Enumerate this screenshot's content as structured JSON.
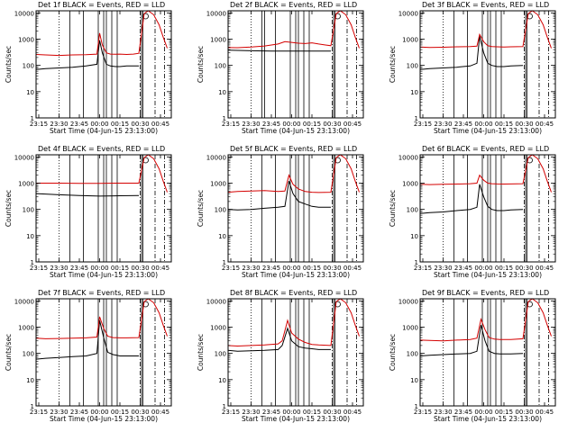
{
  "figure": {
    "ylabel": "Counts/sec",
    "xlabel": "Start Time (04-Jun-15 23:13:00)",
    "x_ticks": [
      "23:15",
      "23:30",
      "23:45",
      "00:00",
      "00:15",
      "00:30",
      "00:45"
    ],
    "y_ticks": [
      "1",
      "10",
      "100",
      "1000",
      "10000"
    ]
  },
  "colors": {
    "events": "#000000",
    "lld": "#d40000",
    "axes": "#000000"
  },
  "chart_data": [
    {
      "type": "line",
      "title": "Det 1f BLACK = Events, RED = LLD",
      "xlabel": "Start Time (04-Jun-15 23:13:00)",
      "ylabel": "Counts/sec",
      "y_scale": "log",
      "ylim": [
        1,
        12000
      ],
      "xlim": [
        "23:13",
        "00:53"
      ],
      "vlines_solid": [
        "23:38",
        "23:48",
        "23:59",
        "00:03",
        "00:05",
        "00:09",
        "00:13",
        "00:31",
        "00:32"
      ],
      "vlines_dotted": [
        "23:30"
      ],
      "vlines_dashdot": [
        "00:30",
        "00:41",
        "00:48"
      ],
      "series": [
        {
          "name": "Events",
          "color": "#000000",
          "x": [
            "23:13",
            "23:20",
            "23:30",
            "23:40",
            "23:50",
            "23:58",
            "24:00",
            "24:02",
            "24:05",
            "24:08",
            "24:12",
            "24:15",
            "24:20",
            "24:25",
            "24:29"
          ],
          "values": [
            70,
            75,
            80,
            85,
            95,
            110,
            900,
            300,
            110,
            95,
            90,
            90,
            95,
            95,
            95
          ]
        },
        {
          "name": "LLD",
          "color": "#d40000",
          "x": [
            "23:13",
            "23:20",
            "23:30",
            "23:40",
            "23:50",
            "23:58",
            "24:00",
            "24:02",
            "24:05",
            "24:08",
            "24:12",
            "24:15",
            "24:20",
            "24:25",
            "24:29",
            "24:33",
            "24:36",
            "24:40",
            "24:44",
            "24:47",
            "24:50"
          ],
          "values": [
            260,
            250,
            240,
            250,
            255,
            270,
            1700,
            600,
            300,
            270,
            265,
            270,
            260,
            270,
            290,
            9500,
            12000,
            8500,
            3500,
            1200,
            450
          ]
        }
      ]
    },
    {
      "type": "line",
      "title": "Det 2f BLACK = Events, RED = LLD",
      "xlabel": "Start Time (04-Jun-15 23:13:00)",
      "ylabel": "Counts/sec",
      "y_scale": "log",
      "ylim": [
        1,
        12000
      ],
      "xlim": [
        "23:13",
        "00:53"
      ],
      "vlines_solid": [
        "23:38",
        "23:40",
        "23:48",
        "23:59",
        "00:03",
        "00:05",
        "00:09",
        "00:13",
        "00:31",
        "00:32"
      ],
      "vlines_dotted": [
        "23:30"
      ],
      "vlines_dashdot": [
        "00:30",
        "00:41",
        "00:48"
      ],
      "series": [
        {
          "name": "Events",
          "color": "#000000",
          "x": [
            "23:13",
            "23:30",
            "23:45",
            "24:00",
            "24:15",
            "24:29"
          ],
          "values": [
            380,
            360,
            350,
            350,
            350,
            350
          ]
        },
        {
          "name": "LLD",
          "color": "#d40000",
          "x": [
            "23:13",
            "23:20",
            "23:30",
            "23:40",
            "23:50",
            "23:55",
            "24:00",
            "24:05",
            "24:10",
            "24:15",
            "24:20",
            "24:25",
            "24:29",
            "24:33",
            "24:36",
            "24:40",
            "24:44",
            "24:47",
            "24:50"
          ],
          "values": [
            480,
            470,
            500,
            550,
            650,
            800,
            750,
            700,
            680,
            720,
            650,
            600,
            560,
            9500,
            12000,
            8500,
            3500,
            1200,
            450
          ]
        }
      ]
    },
    {
      "type": "line",
      "title": "Det 3f BLACK = Events, RED = LLD",
      "xlabel": "Start Time (04-Jun-15 23:13:00)",
      "ylabel": "Counts/sec",
      "y_scale": "log",
      "ylim": [
        1,
        12000
      ],
      "xlim": [
        "23:13",
        "00:53"
      ],
      "vlines_solid": [
        "23:38",
        "23:48",
        "23:59",
        "00:03",
        "00:05",
        "00:09",
        "00:13",
        "00:31",
        "00:32"
      ],
      "vlines_dotted": [
        "23:30"
      ],
      "vlines_dashdot": [
        "00:30",
        "00:41",
        "00:48"
      ],
      "series": [
        {
          "name": "Events",
          "color": "#000000",
          "x": [
            "23:13",
            "23:20",
            "23:30",
            "23:40",
            "23:50",
            "23:55",
            "23:57",
            "24:00",
            "24:03",
            "24:06",
            "24:10",
            "24:15",
            "24:20",
            "24:29"
          ],
          "values": [
            70,
            75,
            80,
            85,
            95,
            120,
            1300,
            300,
            120,
            100,
            90,
            90,
            95,
            100
          ]
        },
        {
          "name": "LLD",
          "color": "#d40000",
          "x": [
            "23:13",
            "23:20",
            "23:30",
            "23:40",
            "23:50",
            "23:55",
            "23:57",
            "24:00",
            "24:03",
            "24:06",
            "24:10",
            "24:15",
            "24:20",
            "24:29",
            "24:33",
            "24:36",
            "24:40",
            "24:44",
            "24:47",
            "24:50"
          ],
          "values": [
            500,
            480,
            490,
            510,
            520,
            540,
            1500,
            800,
            560,
            520,
            510,
            500,
            510,
            520,
            9500,
            12000,
            8500,
            3500,
            1200,
            450
          ]
        }
      ]
    },
    {
      "type": "line",
      "title": "Det 4f BLACK = Events, RED = LLD",
      "xlabel": "Start Time (04-Jun-15 23:13:00)",
      "ylabel": "Counts/sec",
      "y_scale": "log",
      "ylim": [
        1,
        12000
      ],
      "xlim": [
        "23:13",
        "00:53"
      ],
      "vlines_solid": [
        "23:38",
        "23:48",
        "23:59",
        "00:03",
        "00:05",
        "00:09",
        "00:13",
        "00:31",
        "00:32"
      ],
      "vlines_dotted": [
        "23:30"
      ],
      "vlines_dashdot": [
        "00:30",
        "00:41",
        "00:48"
      ],
      "series": [
        {
          "name": "Events",
          "color": "#000000",
          "x": [
            "23:13",
            "23:30",
            "23:45",
            "24:00",
            "24:15",
            "24:29"
          ],
          "values": [
            400,
            360,
            340,
            320,
            330,
            340
          ]
        },
        {
          "name": "LLD",
          "color": "#d40000",
          "x": [
            "23:13",
            "23:30",
            "23:45",
            "24:00",
            "24:15",
            "24:29",
            "24:33",
            "24:36",
            "24:40",
            "24:44",
            "24:47",
            "24:50"
          ],
          "values": [
            1000,
            1000,
            980,
            980,
            1000,
            1000,
            9500,
            12000,
            8500,
            3500,
            1200,
            450
          ]
        }
      ]
    },
    {
      "type": "line",
      "title": "Det 5f BLACK = Events, RED = LLD",
      "xlabel": "Start Time (04-Jun-15 23:13:00)",
      "ylabel": "Counts/sec",
      "y_scale": "log",
      "ylim": [
        1,
        12000
      ],
      "xlim": [
        "23:13",
        "00:53"
      ],
      "vlines_solid": [
        "23:38",
        "23:48",
        "23:59",
        "00:03",
        "00:05",
        "00:09",
        "00:13",
        "00:31",
        "00:32"
      ],
      "vlines_dotted": [
        "23:30"
      ],
      "vlines_dashdot": [
        "00:30",
        "00:41",
        "00:48"
      ],
      "series": [
        {
          "name": "Events",
          "color": "#000000",
          "x": [
            "23:13",
            "23:20",
            "23:30",
            "23:40",
            "23:50",
            "23:55",
            "23:58",
            "24:01",
            "24:05",
            "24:10",
            "24:15",
            "24:20",
            "24:29"
          ],
          "values": [
            100,
            95,
            100,
            110,
            120,
            130,
            1200,
            400,
            200,
            160,
            130,
            120,
            120
          ]
        },
        {
          "name": "LLD",
          "color": "#d40000",
          "x": [
            "23:13",
            "23:20",
            "23:30",
            "23:40",
            "23:50",
            "23:55",
            "23:58",
            "24:01",
            "24:05",
            "24:10",
            "24:15",
            "24:20",
            "24:29",
            "24:33",
            "24:36",
            "24:40",
            "24:44",
            "24:47",
            "24:50"
          ],
          "values": [
            450,
            480,
            500,
            520,
            480,
            500,
            2000,
            900,
            600,
            480,
            450,
            440,
            450,
            9500,
            12000,
            8500,
            3500,
            1200,
            450
          ]
        }
      ]
    },
    {
      "type": "line",
      "title": "Det 6f BLACK = Events, RED = LLD",
      "xlabel": "Start Time (04-Jun-15 23:13:00)",
      "ylabel": "Counts/sec",
      "y_scale": "log",
      "ylim": [
        1,
        12000
      ],
      "xlim": [
        "23:13",
        "00:53"
      ],
      "vlines_solid": [
        "23:38",
        "23:48",
        "23:59",
        "00:03",
        "00:05",
        "00:09",
        "00:13",
        "00:31",
        "00:32"
      ],
      "vlines_dotted": [
        "23:30"
      ],
      "vlines_dashdot": [
        "00:30",
        "00:41",
        "00:48"
      ],
      "series": [
        {
          "name": "Events",
          "color": "#000000",
          "x": [
            "23:13",
            "23:20",
            "23:30",
            "23:40",
            "23:50",
            "23:55",
            "23:57",
            "24:00",
            "24:03",
            "24:06",
            "24:10",
            "24:15",
            "24:20",
            "24:29"
          ],
          "values": [
            70,
            75,
            80,
            90,
            100,
            120,
            900,
            300,
            130,
            100,
            90,
            90,
            95,
            100
          ]
        },
        {
          "name": "LLD",
          "color": "#d40000",
          "x": [
            "23:13",
            "23:20",
            "23:30",
            "23:40",
            "23:50",
            "23:55",
            "23:57",
            "24:00",
            "24:03",
            "24:06",
            "24:10",
            "24:15",
            "24:20",
            "24:29",
            "24:33",
            "24:36",
            "24:40",
            "24:44",
            "24:47",
            "24:50"
          ],
          "values": [
            900,
            880,
            900,
            920,
            950,
            1000,
            2000,
            1300,
            1000,
            950,
            930,
            920,
            930,
            950,
            9500,
            12000,
            8500,
            3500,
            1200,
            450
          ]
        }
      ]
    },
    {
      "type": "line",
      "title": "Det 7f BLACK = Events, RED = LLD",
      "xlabel": "Start Time (04-Jun-15 23:13:00)",
      "ylabel": "Counts/sec",
      "y_scale": "log",
      "ylim": [
        1,
        12000
      ],
      "xlim": [
        "23:13",
        "00:53"
      ],
      "vlines_solid": [
        "23:38",
        "23:48",
        "23:59",
        "00:03",
        "00:05",
        "00:09",
        "00:13",
        "00:31",
        "00:32"
      ],
      "vlines_dotted": [
        "23:30"
      ],
      "vlines_dashdot": [
        "00:30",
        "00:41",
        "00:48"
      ],
      "series": [
        {
          "name": "Events",
          "color": "#000000",
          "x": [
            "23:13",
            "23:20",
            "23:30",
            "23:40",
            "23:50",
            "23:58",
            "24:00",
            "24:03",
            "24:06",
            "24:10",
            "24:15",
            "24:20",
            "24:29"
          ],
          "values": [
            60,
            65,
            70,
            75,
            80,
            100,
            1800,
            400,
            110,
            90,
            80,
            80,
            80
          ]
        },
        {
          "name": "LLD",
          "color": "#d40000",
          "x": [
            "23:13",
            "23:20",
            "23:30",
            "23:40",
            "23:50",
            "23:58",
            "24:00",
            "24:03",
            "24:06",
            "24:10",
            "24:15",
            "24:20",
            "24:29",
            "24:33",
            "24:36",
            "24:40",
            "24:44",
            "24:47",
            "24:50"
          ],
          "values": [
            380,
            360,
            370,
            380,
            390,
            420,
            2500,
            900,
            450,
            400,
            390,
            390,
            400,
            9500,
            12000,
            8500,
            3500,
            1200,
            450
          ]
        }
      ]
    },
    {
      "type": "line",
      "title": "Det 8f BLACK = Events, RED = LLD",
      "xlabel": "Start Time (04-Jun-15 23:13:00)",
      "ylabel": "Counts/sec",
      "y_scale": "log",
      "ylim": [
        1,
        12000
      ],
      "xlim": [
        "23:13",
        "00:53"
      ],
      "vlines_solid": [
        "23:38",
        "23:48",
        "23:59",
        "00:03",
        "00:05",
        "00:09",
        "00:13",
        "00:31",
        "00:32"
      ],
      "vlines_dotted": [
        "23:30"
      ],
      "vlines_dashdot": [
        "00:30",
        "00:41",
        "00:48"
      ],
      "series": [
        {
          "name": "Events",
          "color": "#000000",
          "x": [
            "23:13",
            "23:20",
            "23:30",
            "23:40",
            "23:50",
            "23:53",
            "23:57",
            "24:00",
            "24:05",
            "24:10",
            "24:15",
            "24:20",
            "24:29"
          ],
          "values": [
            130,
            120,
            125,
            130,
            140,
            200,
            900,
            300,
            180,
            160,
            150,
            140,
            140
          ]
        },
        {
          "name": "LLD",
          "color": "#d40000",
          "x": [
            "23:13",
            "23:20",
            "23:30",
            "23:40",
            "23:50",
            "23:53",
            "23:57",
            "24:00",
            "24:05",
            "24:10",
            "24:15",
            "24:20",
            "24:29",
            "24:33",
            "24:36",
            "24:40",
            "24:44",
            "24:47",
            "24:50"
          ],
          "values": [
            200,
            190,
            200,
            210,
            230,
            300,
            1800,
            600,
            350,
            260,
            220,
            210,
            200,
            9500,
            12000,
            8500,
            3500,
            1200,
            450
          ]
        }
      ]
    },
    {
      "type": "line",
      "title": "Det 9f BLACK = Events, RED = LLD",
      "xlabel": "Start Time (04-Jun-15 23:13:00)",
      "ylabel": "Counts/sec",
      "y_scale": "log",
      "ylim": [
        1,
        12000
      ],
      "xlim": [
        "23:13",
        "00:53"
      ],
      "vlines_solid": [
        "23:38",
        "23:48",
        "23:59",
        "00:03",
        "00:05",
        "00:09",
        "00:13",
        "00:31",
        "00:32"
      ],
      "vlines_dotted": [
        "23:30"
      ],
      "vlines_dashdot": [
        "00:30",
        "00:41",
        "00:48"
      ],
      "series": [
        {
          "name": "Events",
          "color": "#000000",
          "x": [
            "23:13",
            "23:20",
            "23:30",
            "23:40",
            "23:50",
            "23:55",
            "23:58",
            "24:01",
            "24:04",
            "24:08",
            "24:12",
            "24:20",
            "24:29"
          ],
          "values": [
            80,
            85,
            90,
            95,
            100,
            120,
            1200,
            300,
            120,
            100,
            95,
            95,
            100
          ]
        },
        {
          "name": "LLD",
          "color": "#d40000",
          "x": [
            "23:13",
            "23:20",
            "23:30",
            "23:40",
            "23:50",
            "23:55",
            "23:58",
            "24:01",
            "24:04",
            "24:08",
            "24:12",
            "24:20",
            "24:29",
            "24:33",
            "24:36",
            "24:40",
            "24:44",
            "24:47",
            "24:50"
          ],
          "values": [
            320,
            310,
            300,
            320,
            340,
            380,
            2000,
            800,
            400,
            350,
            340,
            340,
            360,
            9500,
            12000,
            8500,
            3500,
            1200,
            450
          ]
        }
      ]
    }
  ]
}
